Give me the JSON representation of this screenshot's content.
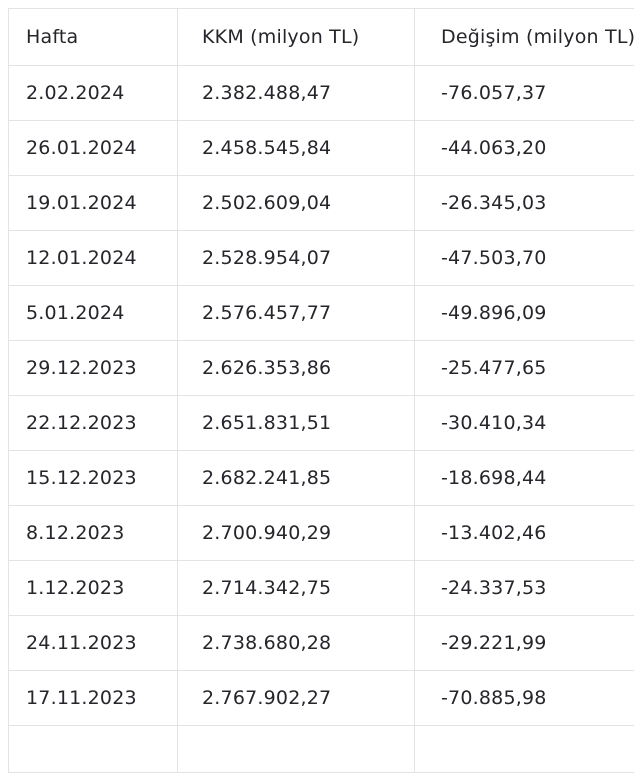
{
  "chart_data": {
    "type": "table",
    "title": "",
    "columns": [
      "Hafta",
      "KKM (milyon TL)",
      "Değişim (milyon TL)"
    ],
    "rows": [
      [
        "2.02.2024",
        "2.382.488,47",
        "-76.057,37"
      ],
      [
        "26.01.2024",
        "2.458.545,84",
        "-44.063,20"
      ],
      [
        "19.01.2024",
        "2.502.609,04",
        "-26.345,03"
      ],
      [
        "12.01.2024",
        "2.528.954,07",
        "-47.503,70"
      ],
      [
        "5.01.2024",
        "2.576.457,77",
        "-49.896,09"
      ],
      [
        "29.12.2023",
        "2.626.353,86",
        "-25.477,65"
      ],
      [
        "22.12.2023",
        "2.651.831,51",
        "-30.410,34"
      ],
      [
        "15.12.2023",
        "2.682.241,85",
        "-18.698,44"
      ],
      [
        "8.12.2023",
        "2.700.940,29",
        "-13.402,46"
      ],
      [
        "1.12.2023",
        "2.714.342,75",
        "-24.337,53"
      ],
      [
        "24.11.2023",
        "2.738.680,28",
        "-29.221,99"
      ],
      [
        "17.11.2023",
        "2.767.902,27",
        "-70.885,98"
      ]
    ],
    "layout_hints": {
      "grid": true,
      "partial_row_cut_off_at_bottom": true
    }
  },
  "colors": {
    "border": "#e3e3e3",
    "text": "#26252b",
    "background": "#ffffff"
  }
}
